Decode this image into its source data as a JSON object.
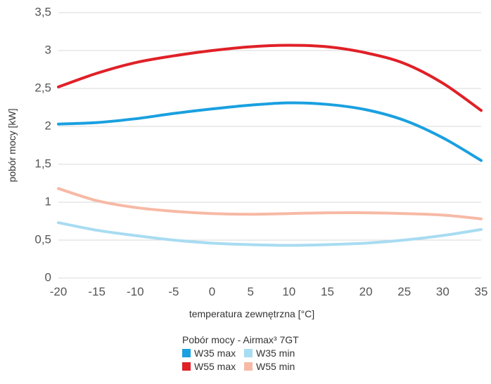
{
  "chart_data": {
    "type": "line",
    "xlabel": "temperatura zewnętrzna [°C]",
    "ylabel": "pobór mocy [kW]",
    "xlim": [
      -20,
      35
    ],
    "ylim": [
      0,
      3.5
    ],
    "x_ticks": [
      -20,
      -15,
      -10,
      -5,
      0,
      5,
      10,
      15,
      20,
      25,
      30,
      35
    ],
    "y_ticks": [
      0,
      0.5,
      1,
      1.5,
      2,
      2.5,
      3,
      3.5
    ],
    "y_tick_labels": [
      "0",
      "0,5",
      "1",
      "1,5",
      "2",
      "2,5",
      "3",
      "3,5"
    ],
    "x_tick_labels": [
      "-20",
      "-15",
      "-10",
      "-5",
      "0",
      "5",
      "10",
      "15",
      "20",
      "25",
      "30",
      "35"
    ],
    "grid": "horizontal",
    "legend_title": "Pobór mocy - Airmax³ 7GT",
    "legend_placement": "bottom",
    "x": [
      -20,
      -15,
      -10,
      -5,
      0,
      5,
      10,
      15,
      20,
      25,
      30,
      35
    ],
    "series": [
      {
        "name": "W35 max",
        "color": "#1aa0e0",
        "values": [
          2.03,
          2.05,
          2.1,
          2.17,
          2.23,
          2.28,
          2.31,
          2.29,
          2.22,
          2.08,
          1.85,
          1.55
        ]
      },
      {
        "name": "W35 min",
        "color": "#a8dcf2",
        "values": [
          0.73,
          0.63,
          0.56,
          0.5,
          0.46,
          0.44,
          0.43,
          0.44,
          0.46,
          0.5,
          0.56,
          0.64
        ]
      },
      {
        "name": "W55 max",
        "color": "#e02027",
        "values": [
          2.52,
          2.7,
          2.84,
          2.93,
          3.0,
          3.05,
          3.07,
          3.05,
          2.97,
          2.83,
          2.57,
          2.21
        ]
      },
      {
        "name": "W55 min",
        "color": "#f7b9a5",
        "values": [
          1.18,
          1.02,
          0.93,
          0.88,
          0.85,
          0.84,
          0.85,
          0.86,
          0.86,
          0.85,
          0.83,
          0.78
        ]
      }
    ]
  }
}
